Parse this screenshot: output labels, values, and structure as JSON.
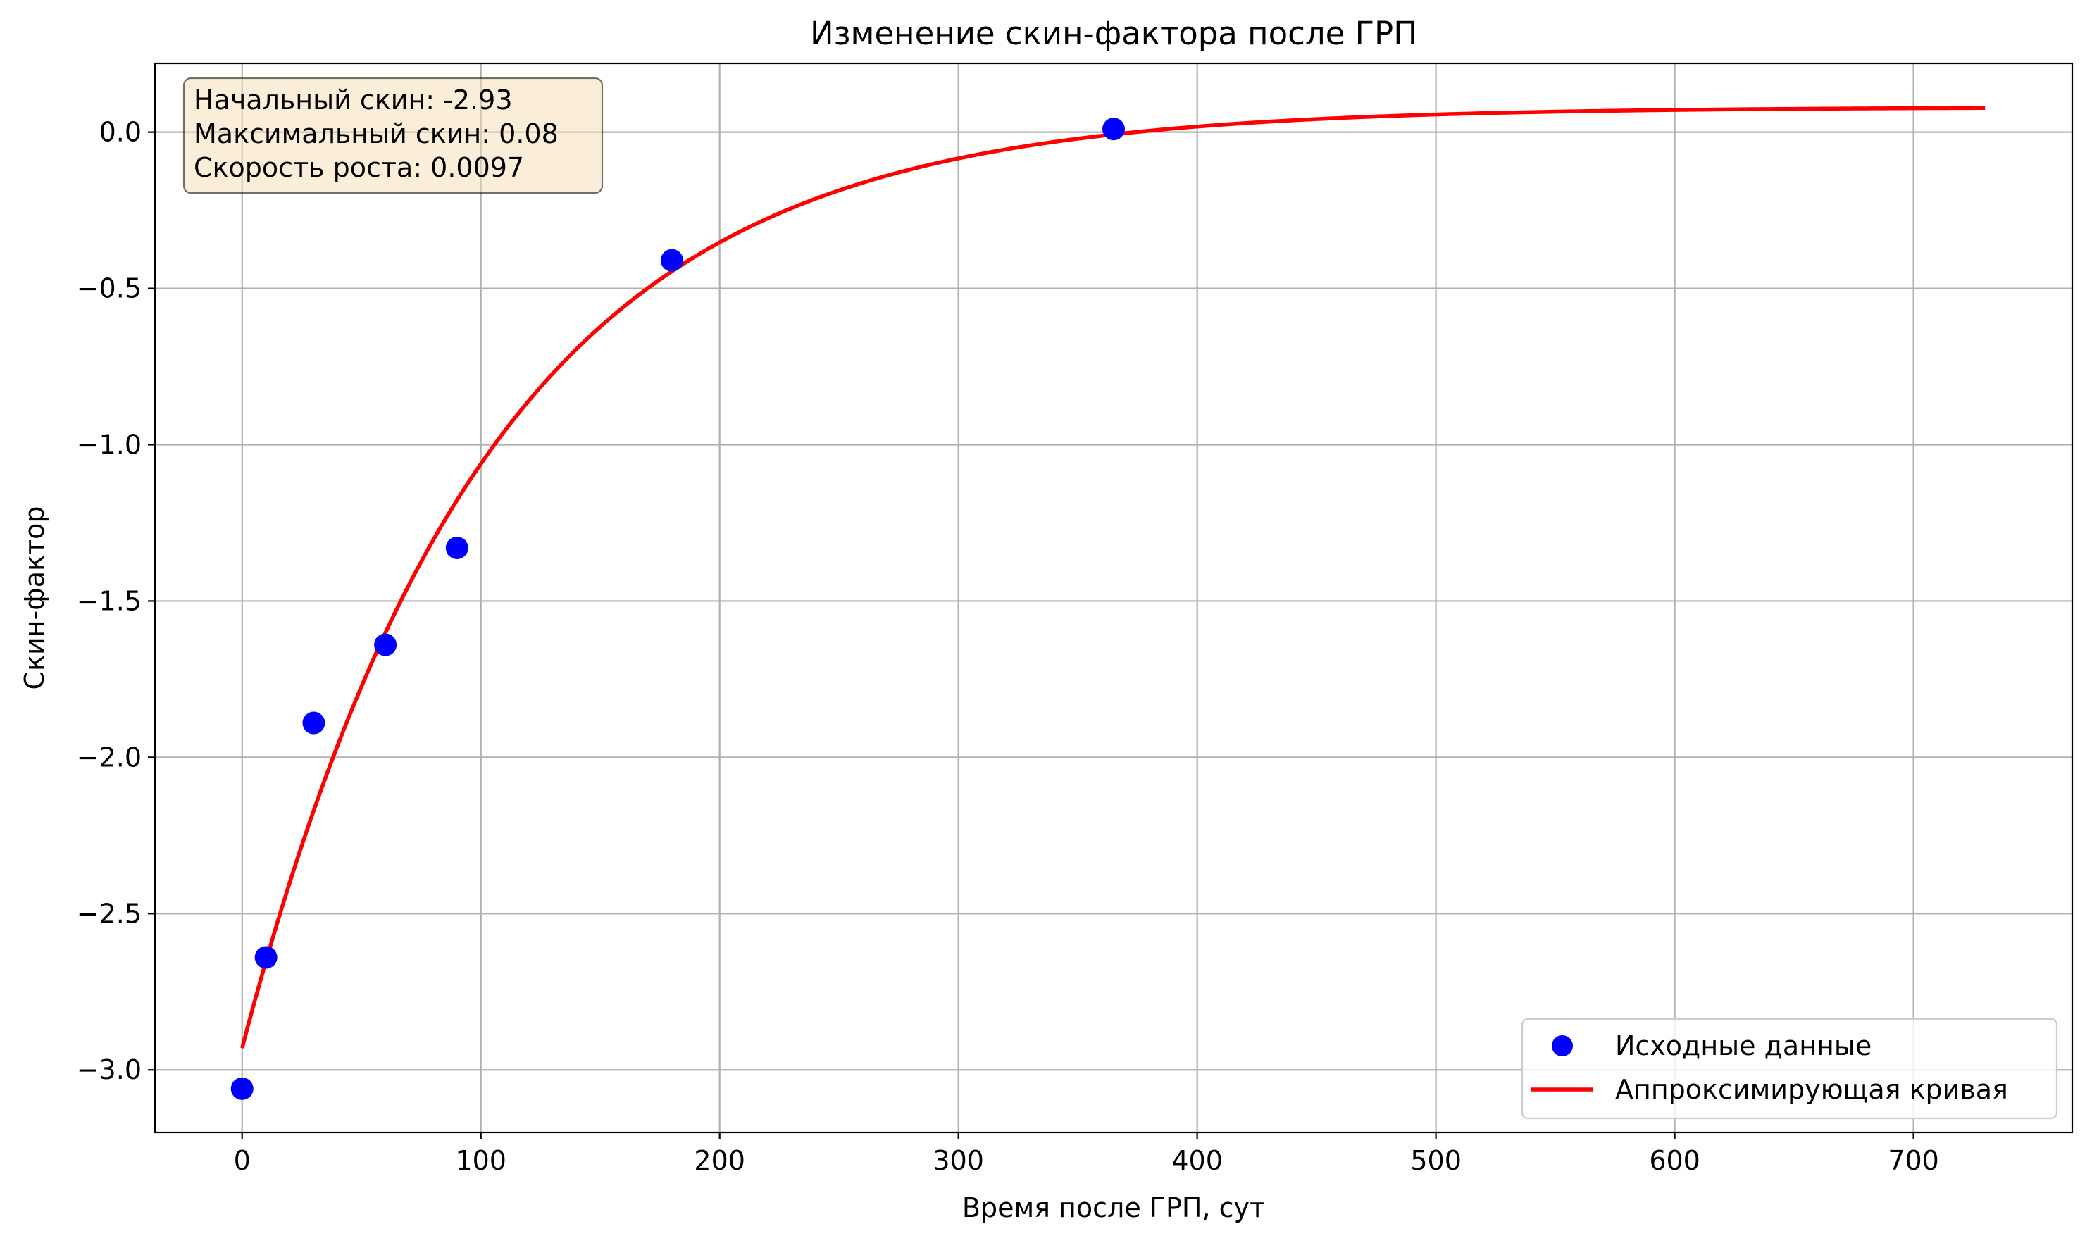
{
  "chart_data": {
    "type": "line",
    "title": "Изменение скин-фактора после ГРП",
    "xlabel": "Время после ГРП, сут",
    "ylabel": "Скин-фактор",
    "xlim": [
      -36.5,
      766.5
    ],
    "ylim": [
      -3.2,
      0.22
    ],
    "x_ticks": [
      0,
      100,
      200,
      300,
      400,
      500,
      600,
      700
    ],
    "x_tick_labels": [
      "0",
      "100",
      "200",
      "300",
      "400",
      "500",
      "600",
      "700"
    ],
    "y_ticks": [
      0.0,
      -0.5,
      -1.0,
      -1.5,
      -2.0,
      -2.5,
      -3.0
    ],
    "y_tick_labels": [
      "0.0",
      "−0.5",
      "−1.0",
      "−1.5",
      "−2.0",
      "−2.5",
      "−3.0"
    ],
    "grid": true,
    "legend_position": "lower-right",
    "series": [
      {
        "name": "Исходные данные",
        "kind": "scatter",
        "color": "#0000ff",
        "x": [
          0,
          10,
          30,
          60,
          90,
          180,
          365
        ],
        "y": [
          -3.06,
          -2.64,
          -1.89,
          -1.64,
          -1.33,
          -0.41,
          0.01
        ]
      },
      {
        "name": "Аппроксимирующая кривая",
        "kind": "line",
        "color": "#ff0000",
        "model": {
          "x_start": 0,
          "x_end": 730,
          "s0": -2.93,
          "smax": 0.08,
          "rate": 0.0097
        }
      }
    ],
    "annotation": {
      "lines": [
        "Начальный скин: -2.93",
        "Максимальный скин: 0.08",
        "Скорость роста: 0.0097"
      ],
      "box_color": "#f5deb3"
    }
  }
}
